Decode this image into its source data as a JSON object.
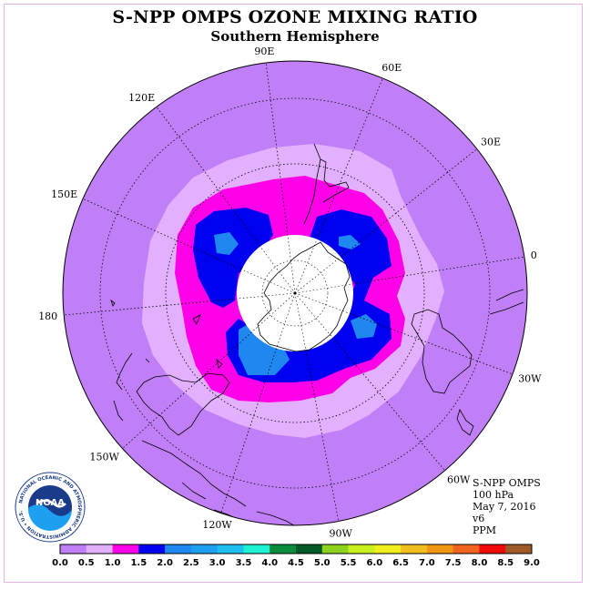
{
  "header": {
    "title": "S-NPP OMPS OZONE MIXING RATIO",
    "subtitle": "Southern Hemisphere"
  },
  "map": {
    "projection": "polar stereographic (south pole)",
    "longitude_labels": [
      {
        "text": "0",
        "lon": 0
      },
      {
        "text": "30E",
        "lon": 30
      },
      {
        "text": "60E",
        "lon": 60
      },
      {
        "text": "90E",
        "lon": 90
      },
      {
        "text": "120E",
        "lon": 120
      },
      {
        "text": "150E",
        "lon": 150
      },
      {
        "text": "180",
        "lon": 180
      },
      {
        "text": "150W",
        "lon": -150
      },
      {
        "text": "120W",
        "lon": -120
      },
      {
        "text": "90W",
        "lon": -90
      },
      {
        "text": "60W",
        "lon": -60
      },
      {
        "text": "30W",
        "lon": -30
      }
    ],
    "colors": {
      "background_level": "#c07ff7",
      "ring_level": "#e3b0ff",
      "mid_level": "#ff00e8",
      "high_level": "#0000f0",
      "peak_level": "#1e88f0",
      "no_data": "#ffffff"
    }
  },
  "info": {
    "lines": [
      "S-NPP OMPS",
      "100 hPa",
      "May 7, 2016",
      "v6",
      "PPM"
    ]
  },
  "logo": {
    "text": "NOAA",
    "ring_text": "NATIONAL OCEANIC AND ATMOSPHERIC ADMINISTRATION",
    "bottom_text": "U.S. DEPARTMENT OF COMMERCE"
  },
  "colorbar": {
    "ticks": [
      "0.0",
      "0.5",
      "1.0",
      "1.5",
      "2.0",
      "2.5",
      "3.0",
      "3.5",
      "4.0",
      "4.5",
      "5.0",
      "5.5",
      "6.0",
      "6.5",
      "7.0",
      "7.5",
      "8.0",
      "8.5",
      "9.0"
    ],
    "colors": [
      "#c07ff7",
      "#e3b0ff",
      "#ff00e8",
      "#0000f0",
      "#1e88f0",
      "#1ea0f0",
      "#1ebef0",
      "#1ef0d2",
      "#0a8c3c",
      "#005a28",
      "#8cd21e",
      "#c8f01e",
      "#f0f01e",
      "#f0be1e",
      "#f09614",
      "#f0641e",
      "#f00a0a",
      "#a05a28"
    ]
  }
}
